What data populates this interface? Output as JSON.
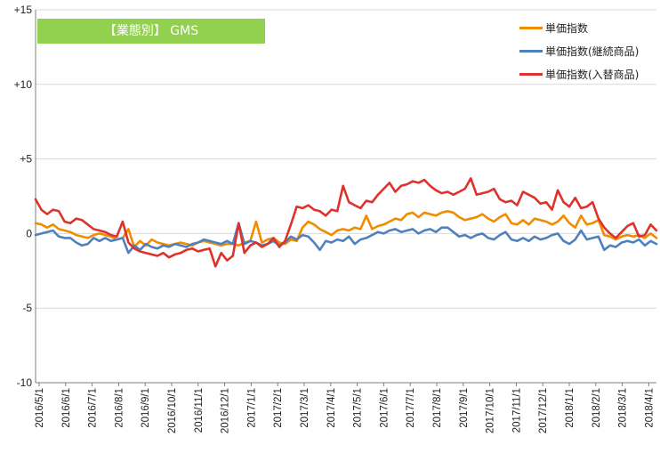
{
  "chart_data": {
    "type": "line",
    "title": "【業態別】 GMS",
    "ylim": [
      -10,
      15
    ],
    "y_ticks": [
      "+15",
      "+10",
      "+5",
      "0",
      "-5",
      "-10"
    ],
    "y_tick_values": [
      15,
      10,
      5,
      0,
      -5,
      -10
    ],
    "x_ticks": [
      "2016/5/1",
      "2016/6/1",
      "2016/7/1",
      "2016/8/1",
      "2016/9/1",
      "2016/10/1",
      "2016/11/1",
      "2016/12/1",
      "2017/1/1",
      "2017/2/1",
      "2017/3/1",
      "2017/4/1",
      "2017/5/1",
      "2017/6/1",
      "2017/7/1",
      "2017/8/1",
      "2017/9/1",
      "2017/10/1",
      "2017/11/1",
      "2017/12/1",
      "2018/1/1",
      "2018/2/1",
      "2018/3/1",
      "2018/4/1"
    ],
    "grid": "horizontal",
    "legend_position": "top-right",
    "series": [
      {
        "name": "単価指数",
        "color": "#f08c00",
        "values": [
          0.7,
          0.6,
          0.4,
          0.6,
          0.3,
          0.2,
          0.1,
          -0.1,
          -0.2,
          -0.3,
          -0.1,
          0.0,
          -0.1,
          -0.2,
          -0.4,
          -0.3,
          0.3,
          -0.9,
          -0.5,
          -0.8,
          -0.4,
          -0.6,
          -0.7,
          -0.8,
          -0.7,
          -0.6,
          -0.7,
          -0.8,
          -0.6,
          -0.5,
          -0.6,
          -0.7,
          -0.8,
          -0.7,
          -0.7,
          -0.8,
          -0.6,
          -0.5,
          0.8,
          -0.6,
          -0.4,
          -0.3,
          -0.6,
          -0.7,
          -0.4,
          -0.5,
          0.4,
          0.8,
          0.6,
          0.3,
          0.1,
          -0.1,
          0.2,
          0.3,
          0.2,
          0.4,
          0.3,
          1.2,
          0.3,
          0.5,
          0.6,
          0.8,
          1.0,
          0.9,
          1.3,
          1.4,
          1.1,
          1.4,
          1.3,
          1.2,
          1.4,
          1.5,
          1.4,
          1.1,
          0.9,
          1.0,
          1.1,
          1.3,
          1.0,
          0.8,
          1.1,
          1.3,
          0.7,
          0.6,
          0.9,
          0.6,
          1.0,
          0.9,
          0.8,
          0.6,
          0.8,
          1.2,
          0.7,
          0.4,
          1.2,
          0.6,
          0.7,
          0.9,
          -0.1,
          -0.2,
          -0.4,
          -0.2,
          -0.1,
          -0.2,
          -0.1,
          -0.3,
          0.0,
          -0.3
        ]
      },
      {
        "name": "単価指数(継続商品)",
        "color": "#4f81bd",
        "values": [
          -0.1,
          0.0,
          0.1,
          0.2,
          -0.2,
          -0.3,
          -0.3,
          -0.6,
          -0.8,
          -0.7,
          -0.3,
          -0.5,
          -0.3,
          -0.5,
          -0.4,
          -0.3,
          -1.3,
          -0.8,
          -1.1,
          -0.7,
          -0.9,
          -1.0,
          -0.8,
          -0.9,
          -0.7,
          -0.8,
          -0.9,
          -0.7,
          -0.6,
          -0.4,
          -0.5,
          -0.6,
          -0.7,
          -0.5,
          -0.7,
          0.7,
          -0.7,
          -0.5,
          -0.6,
          -0.8,
          -0.7,
          -0.5,
          -0.8,
          -0.6,
          -0.2,
          -0.4,
          -0.1,
          -0.2,
          -0.6,
          -1.1,
          -0.5,
          -0.6,
          -0.4,
          -0.5,
          -0.2,
          -0.7,
          -0.4,
          -0.3,
          -0.1,
          0.1,
          0.0,
          0.2,
          0.3,
          0.1,
          0.2,
          0.3,
          0.0,
          0.2,
          0.3,
          0.1,
          0.4,
          0.4,
          0.1,
          -0.2,
          -0.1,
          -0.3,
          -0.1,
          0.0,
          -0.3,
          -0.4,
          -0.1,
          0.1,
          -0.4,
          -0.5,
          -0.3,
          -0.5,
          -0.2,
          -0.4,
          -0.3,
          -0.1,
          0.0,
          -0.5,
          -0.7,
          -0.4,
          0.2,
          -0.4,
          -0.3,
          -0.2,
          -1.1,
          -0.8,
          -0.9,
          -0.6,
          -0.5,
          -0.6,
          -0.4,
          -0.8,
          -0.5,
          -0.7
        ]
      },
      {
        "name": "単価指数(入替商品)",
        "color": "#e0322c",
        "values": [
          2.3,
          1.6,
          1.3,
          1.6,
          1.5,
          0.8,
          0.7,
          1.0,
          0.9,
          0.6,
          0.3,
          0.2,
          0.1,
          -0.1,
          -0.2,
          0.8,
          -0.6,
          -1.0,
          -1.2,
          -1.3,
          -1.4,
          -1.5,
          -1.3,
          -1.6,
          -1.4,
          -1.3,
          -1.1,
          -1.0,
          -1.2,
          -1.1,
          -1.0,
          -2.2,
          -1.3,
          -1.8,
          -1.5,
          0.7,
          -1.3,
          -0.8,
          -0.6,
          -0.9,
          -0.7,
          -0.3,
          -0.9,
          -0.5,
          0.6,
          1.8,
          1.7,
          1.9,
          1.6,
          1.5,
          1.2,
          1.6,
          1.5,
          3.2,
          2.1,
          1.9,
          1.7,
          2.2,
          2.1,
          2.6,
          3.0,
          3.4,
          2.8,
          3.2,
          3.3,
          3.5,
          3.4,
          3.6,
          3.2,
          2.9,
          2.7,
          2.8,
          2.6,
          2.8,
          3.0,
          3.7,
          2.6,
          2.7,
          2.8,
          3.0,
          2.3,
          2.1,
          2.2,
          1.9,
          2.8,
          2.6,
          2.4,
          2.0,
          2.1,
          1.6,
          2.9,
          2.1,
          1.8,
          2.4,
          1.7,
          1.8,
          2.1,
          1.0,
          0.4,
          0.0,
          -0.3,
          0.1,
          0.5,
          0.7,
          -0.2,
          -0.1,
          0.6,
          0.2
        ]
      }
    ]
  }
}
